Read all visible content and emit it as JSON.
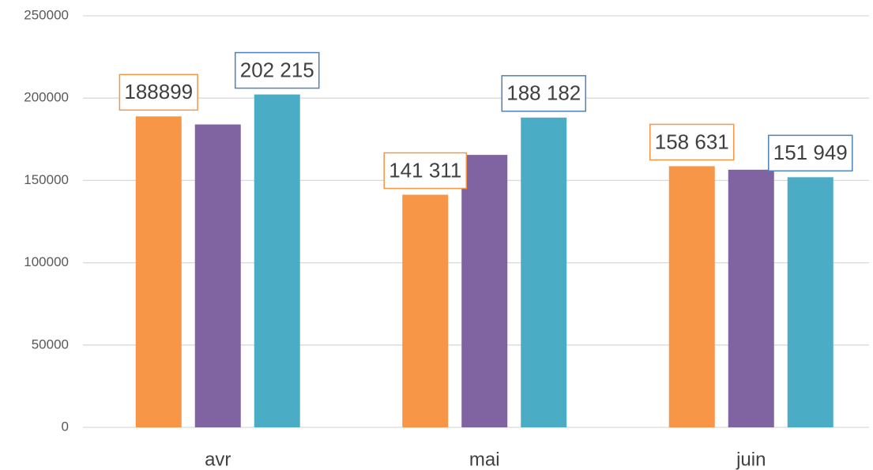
{
  "chart_data": {
    "type": "bar",
    "categories": [
      "avr",
      "mai",
      "juin"
    ],
    "series": [
      {
        "color": "#f79646",
        "label_border": "#f79646",
        "values": [
          188899,
          141311,
          158631
        ],
        "value_labels": [
          "188899",
          "141 311",
          "158 631"
        ]
      },
      {
        "color": "#8064a2",
        "values": [
          184000,
          165500,
          156500
        ]
      },
      {
        "color": "#4bacc6",
        "label_border": "#4f81bd",
        "values": [
          202215,
          188182,
          151949
        ],
        "value_labels": [
          "202 215",
          "188 182",
          "151 949"
        ]
      }
    ],
    "ylim": [
      0,
      250000
    ],
    "yticks": [
      0,
      50000,
      100000,
      150000,
      200000,
      250000
    ],
    "grid": true
  }
}
